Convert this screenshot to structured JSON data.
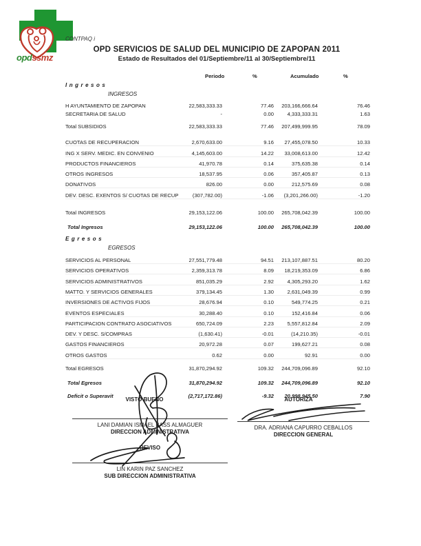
{
  "page": {
    "software_label": "CONTPAQ i",
    "title": "OPD SERVICIOS DE SALUD DEL MUNICIPIO DE ZAPOPAN 2011",
    "subtitle": "Estado de Resultados del  01/Septiembre/11  al  30/Septiembre/11"
  },
  "logo": {
    "text_green": "opd",
    "text_red": "ssmz",
    "cross_color": "#1f9632",
    "heart_color": "#c0392b"
  },
  "statement": {
    "columns": {
      "periodo": "Periodo",
      "pct1": "%",
      "acumulado": "Acumulado",
      "pct2": "%"
    },
    "sections": [
      {
        "title": "Ingresos",
        "subtitle": "INGRESOS",
        "rows": [
          {
            "type": "detail",
            "label": "H AYUNTAMIENTO DE ZAPOPAN",
            "periodo": "22,583,333.33",
            "pct_periodo": "77.46",
            "acumulado": "203,166,666.64",
            "pct_acumulado": "76.46"
          },
          {
            "type": "detail",
            "label": "SECRETARIA DE SALUD",
            "periodo": "-",
            "pct_periodo": "0.00",
            "acumulado": "4,333,333.31",
            "pct_acumulado": "1.63"
          },
          {
            "type": "total mb",
            "label": "Total SUBSIDIOS",
            "periodo": "22,583,333.33",
            "pct_periodo": "77.46",
            "acumulado": "207,499,999.95",
            "pct_acumulado": "78.09"
          },
          {
            "type": "detail sep",
            "label": "CUOTAS DE RECUPERACION",
            "periodo": "2,670,633.00",
            "pct_periodo": "9.16",
            "acumulado": "27,455,078.50",
            "pct_acumulado": "10.33"
          },
          {
            "type": "detail sep",
            "label": "ING X SERV. MEDIC. EN CONVENIO",
            "periodo": "4,145,603.00",
            "pct_periodo": "14.22",
            "acumulado": "33,008,613.00",
            "pct_acumulado": "12.42"
          },
          {
            "type": "detail sep",
            "label": "PRODUCTOS FINANCIEROS",
            "periodo": "41,970.78",
            "pct_periodo": "0.14",
            "acumulado": "375,635.38",
            "pct_acumulado": "0.14"
          },
          {
            "type": "detail sep",
            "label": "OTROS INGRESOS",
            "periodo": "18,537.95",
            "pct_periodo": "0.06",
            "acumulado": "357,405.87",
            "pct_acumulado": "0.13"
          },
          {
            "type": "detail sep",
            "label": "DONATIVOS",
            "periodo": "826.00",
            "pct_periodo": "0.00",
            "acumulado": "212,575.69",
            "pct_acumulado": "0.08"
          },
          {
            "type": "detail sep",
            "label": "DEV. DESC. EXENTOS S/ CUOTAS DE RECUP",
            "periodo": "(307,782.00)",
            "pct_periodo": "-1.06",
            "acumulado": "(3,201,266.00)",
            "pct_acumulado": "-1.20"
          },
          {
            "type": "total mt2",
            "label": "Total INGRESOS",
            "periodo": "29,153,122.06",
            "pct_periodo": "100.00",
            "acumulado": "265,708,042.39",
            "pct_acumulado": "100.00"
          },
          {
            "type": "grand",
            "label": "Total Ingresos",
            "periodo": "29,153,122.06",
            "pct_periodo": "100.00",
            "acumulado": "265,708,042.39",
            "pct_acumulado": "100.00"
          }
        ]
      },
      {
        "title": "Egresos",
        "subtitle": "EGRESOS",
        "rows": [
          {
            "type": "detail sep",
            "label": "SERVICIOS AL PERSONAL",
            "periodo": "27,551,779.48",
            "pct_periodo": "94.51",
            "acumulado": "213,107,887.51",
            "pct_acumulado": "80.20"
          },
          {
            "type": "detail sep",
            "label": "SERVICIOS OPERATIVOS",
            "periodo": "2,359,313.78",
            "pct_periodo": "8.09",
            "acumulado": "18,219,353.09",
            "pct_acumulado": "6.86"
          },
          {
            "type": "detail sep",
            "label": "SERVICIOS ADMINISTRATIVOS",
            "periodo": "851,035.29",
            "pct_periodo": "2.92",
            "acumulado": "4,305,293.20",
            "pct_acumulado": "1.62"
          },
          {
            "type": "detail sep",
            "label": "MATTO. Y SERVICIOS GENERALES",
            "periodo": "379,134.45",
            "pct_periodo": "1.30",
            "acumulado": "2,631,049.39",
            "pct_acumulado": "0.99"
          },
          {
            "type": "detail sep",
            "label": "INVERSIONES DE ACTIVOS FIJOS",
            "periodo": "28,676.94",
            "pct_periodo": "0.10",
            "acumulado": "549,774.25",
            "pct_acumulado": "0.21"
          },
          {
            "type": "detail sep",
            "label": "EVENTOS ESPECIALES",
            "periodo": "30,288.40",
            "pct_periodo": "0.10",
            "acumulado": "152,416.84",
            "pct_acumulado": "0.06"
          },
          {
            "type": "detail sep",
            "label": "PARTICIPACION CONTRATO ASOCIATIVOS",
            "periodo": "650,724.09",
            "pct_periodo": "2.23",
            "acumulado": "5,557,812.84",
            "pct_acumulado": "2.09"
          },
          {
            "type": "detail sep",
            "label": "DEV. Y DESC. S/COMPRAS",
            "periodo": "(1,630.41)",
            "pct_periodo": "-0.01",
            "acumulado": "(14,210.35)",
            "pct_acumulado": "-0.01"
          },
          {
            "type": "detail sep",
            "label": "GASTOS FINANCIEROS",
            "periodo": "20,972.28",
            "pct_periodo": "0.07",
            "acumulado": "199,627.21",
            "pct_acumulado": "0.08"
          },
          {
            "type": "detail sep",
            "label": "OTROS GASTOS",
            "periodo": "0.62",
            "pct_periodo": "0.00",
            "acumulado": "92.91",
            "pct_acumulado": "0.00"
          },
          {
            "type": "total",
            "label": "Total EGRESOS",
            "periodo": "31,870,294.92",
            "pct_periodo": "109.32",
            "acumulado": "244,709,096.89",
            "pct_acumulado": "92.10"
          },
          {
            "type": "grand",
            "label": "Total Egresos",
            "periodo": "31,870,294.92",
            "pct_periodo": "109.32",
            "acumulado": "244,709,096.89",
            "pct_acumulado": "92.10"
          },
          {
            "type": "result",
            "label": "Deficit o Superavit",
            "periodo": "(2,717,172.86)",
            "pct_periodo": "-9.32",
            "acumulado": "20,998,945.50",
            "pct_acumulado": "7.90"
          }
        ]
      }
    ]
  },
  "signatures": {
    "visto_bueno": {
      "label": "VISTO BUENO",
      "name": "LANI DAMIAN ISMAEL BASS ALMAGUER",
      "title": "DIRECCION ADMINISTRATIVA"
    },
    "autoriza": {
      "label": "AUTORIZA",
      "name": "DRA. ADRIANA CAPURRO CEBALLOS",
      "title": "DIRECCION GENERAL"
    },
    "reviso": {
      "label": "REVISO",
      "name": "LIN KARIN PAZ SANCHEZ",
      "title": "SUB DIRECCION ADMINISTRATIVA"
    }
  }
}
